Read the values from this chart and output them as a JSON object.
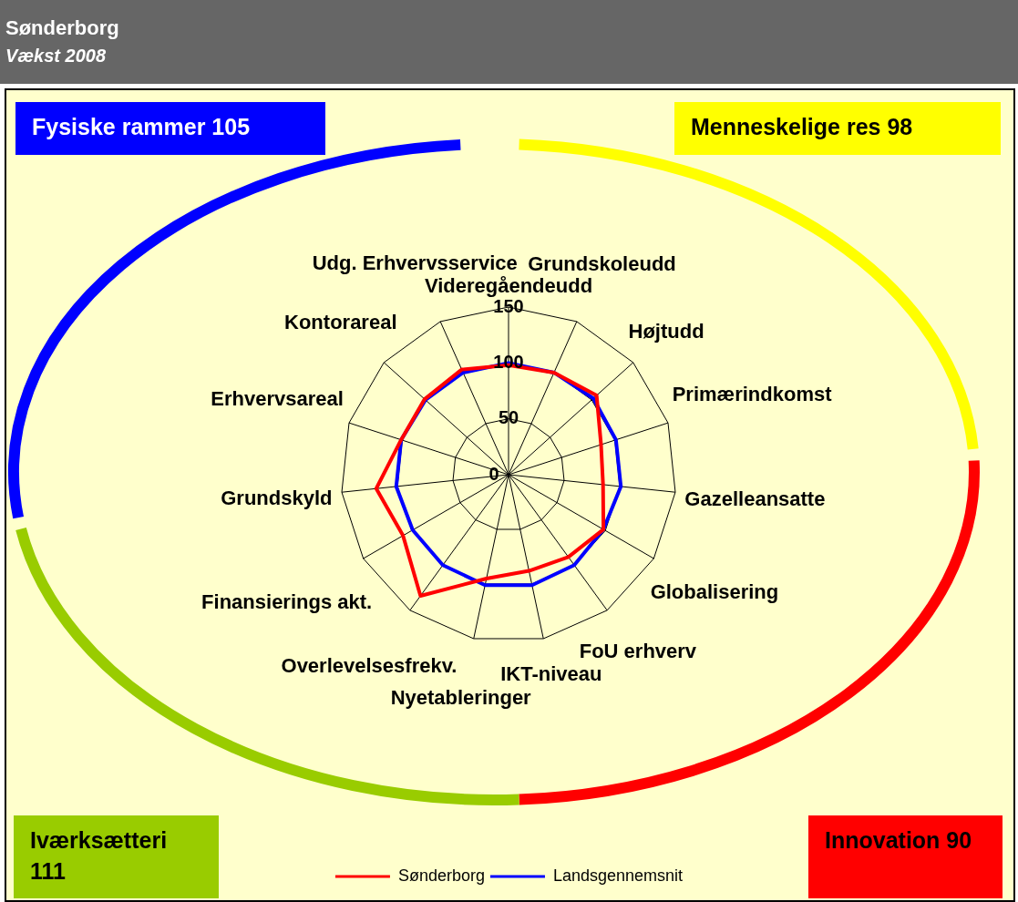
{
  "chart_data": {
    "type": "radar",
    "title": "Sønderborg",
    "subtitle": "Vækst 2008",
    "categories": [
      "Videregåendeudd",
      "Grundskoleudd",
      "Højtudd",
      "Primærindkomst",
      "Gazelleansatte",
      "Globalisering",
      "FoU erhverv",
      "IKT-niveau",
      "Nyetableringer",
      "Overlevelsesfrekv.",
      "Finansierings akt.",
      "Grundskyld",
      "Erhvervsareal",
      "Kontorareal",
      "Udg. Erhvervsservice"
    ],
    "series": [
      {
        "name": "Sønderborg",
        "color": "#ff0000",
        "values": [
          98,
          100,
          106,
          87,
          85,
          98,
          91,
          88,
          95,
          134,
          109,
          119,
          101,
          101,
          103
        ]
      },
      {
        "name": "Landsgennemsnit",
        "color": "#0000ff",
        "values": [
          100,
          100,
          102,
          101,
          101,
          98,
          100,
          101,
          101,
          100,
          99,
          101,
          101,
          100,
          100
        ]
      }
    ],
    "ylim": [
      0,
      150
    ],
    "yticks": [
      0,
      50,
      100,
      150
    ],
    "grid": true,
    "legend": "bottom",
    "annotations": [
      "Fysiske rammer 105",
      "Menneskelige res 98",
      "Iværksætteri 111",
      "Innovation 90"
    ]
  }
}
